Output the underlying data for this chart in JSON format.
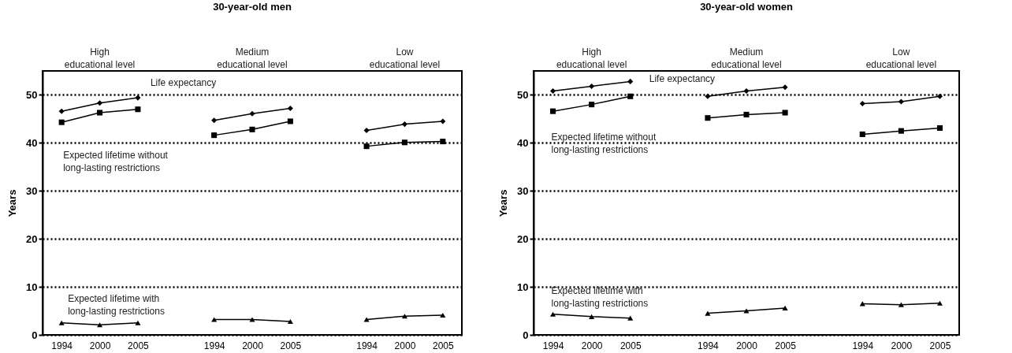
{
  "chart_data": [
    {
      "type": "line",
      "title": "30-year-old men",
      "ylabel": "Years",
      "categories": [
        "1994",
        "2000",
        "2005",
        null,
        "1994",
        "2000",
        "2005",
        null,
        "1994",
        "2000",
        "2005"
      ],
      "series": [
        {
          "color": "#000000",
          "marker": "diamond",
          "values": [
            46.6,
            48.3,
            49.4,
            null,
            44.7,
            46.1,
            47.2,
            null,
            42.6,
            43.9,
            44.5
          ]
        },
        {
          "color": "#000000",
          "marker": "square",
          "values": [
            44.3,
            46.3,
            47.0,
            null,
            41.6,
            42.8,
            44.5,
            null,
            39.3,
            40.1,
            40.3
          ]
        },
        {
          "color": "#000000",
          "marker": "triangle",
          "values": [
            2.5,
            2.1,
            2.5,
            null,
            3.2,
            3.2,
            2.8,
            null,
            3.2,
            3.9,
            4.1
          ]
        }
      ],
      "ylim": [
        0,
        55
      ],
      "yticks": [
        0,
        10,
        20,
        30,
        40,
        50
      ],
      "grid": "y",
      "line_style": "solid",
      "annotations": [
        "High\neducational level",
        "Medium\neducational level",
        "Low\neducational level",
        "Life expectancy",
        "Expected lifetime without\nlong-lasting restrictions",
        "Expected lifetime with\nlong-lasting restrictions"
      ]
    },
    {
      "type": "line",
      "title": "30-year-old women",
      "ylabel": "Years",
      "categories": [
        "1994",
        "2000",
        "2005",
        null,
        "1994",
        "2000",
        "2005",
        null,
        "1994",
        "2000",
        "2005"
      ],
      "series": [
        {
          "color": "#000000",
          "marker": "diamond",
          "values": [
            50.8,
            51.8,
            52.8,
            null,
            49.7,
            50.8,
            51.6,
            null,
            48.2,
            48.6,
            49.7
          ]
        },
        {
          "color": "#000000",
          "marker": "square",
          "values": [
            46.6,
            48.0,
            49.7,
            null,
            45.2,
            45.9,
            46.3,
            null,
            41.8,
            42.5,
            43.1
          ]
        },
        {
          "color": "#000000",
          "marker": "triangle",
          "values": [
            4.3,
            3.8,
            3.5,
            null,
            4.5,
            5.0,
            5.6,
            null,
            6.5,
            6.3,
            6.6
          ]
        }
      ],
      "ylim": [
        0,
        55
      ],
      "yticks": [
        0,
        10,
        20,
        30,
        40,
        50
      ],
      "grid": "y",
      "line_style": "solid",
      "annotations": [
        "High\neducational level",
        "Medium\neducational level",
        "Low\neducational level",
        "Life expectancy",
        "Expected lifetime without\nlong-lasting restrictions",
        "Expected lifetime with\nlong-lasting restrictions"
      ]
    }
  ]
}
